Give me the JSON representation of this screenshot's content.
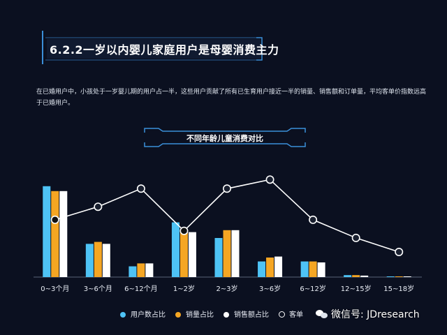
{
  "section": {
    "title": "6.2.2一岁以内婴儿家庭用户是母婴消费主力"
  },
  "description": "在已婚用户中，小孩处于一岁婴儿期的用户占一半，这些用户贡献了所有已生育用户接近一半的销量、销售额和订单量，平均客单价指数远高于已婚用户。",
  "chart_data": {
    "type": "bar",
    "title": "不同年龄儿童消费对比",
    "categories": [
      "0~3个月",
      "3~6个月",
      "6~12个月",
      "1~2岁",
      "2~3岁",
      "3~6岁",
      "6~12岁",
      "12~15岁",
      "15~18岁"
    ],
    "series": [
      {
        "name": "用户数占比",
        "type": "bar",
        "color": "#4ec3f5",
        "values": [
          0.93,
          0.34,
          0.11,
          0.56,
          0.4,
          0.16,
          0.16,
          0.02,
          0.005
        ]
      },
      {
        "name": "销量占比",
        "type": "bar",
        "color": "#f5a623",
        "values": [
          0.88,
          0.36,
          0.14,
          0.48,
          0.48,
          0.2,
          0.16,
          0.02,
          0.005
        ]
      },
      {
        "name": "销售额占比",
        "type": "bar",
        "color": "#ffffff",
        "values": [
          0.88,
          0.34,
          0.14,
          0.46,
          0.48,
          0.21,
          0.15,
          0.015,
          0.005
        ]
      },
      {
        "name": "客单价指数",
        "type": "line",
        "color": "#ffffff",
        "values": [
          0.57,
          0.7,
          0.88,
          0.46,
          0.88,
          0.97,
          0.57,
          0.39,
          0.25
        ]
      }
    ],
    "ylim": [
      0,
      1
    ],
    "grid": false,
    "legend": "bottom"
  },
  "legend_items": [
    {
      "label": "用户数占比",
      "color": "#4ec3f5",
      "marker": "dot"
    },
    {
      "label": "销量占比",
      "color": "#f5a623",
      "marker": "dot"
    },
    {
      "label": "销售额占比",
      "color": "#ffffff",
      "marker": "dot"
    },
    {
      "label": "客单",
      "color": "#ffffff",
      "marker": "ring"
    }
  ],
  "watermark": {
    "text": "微信号: JDresearch"
  }
}
